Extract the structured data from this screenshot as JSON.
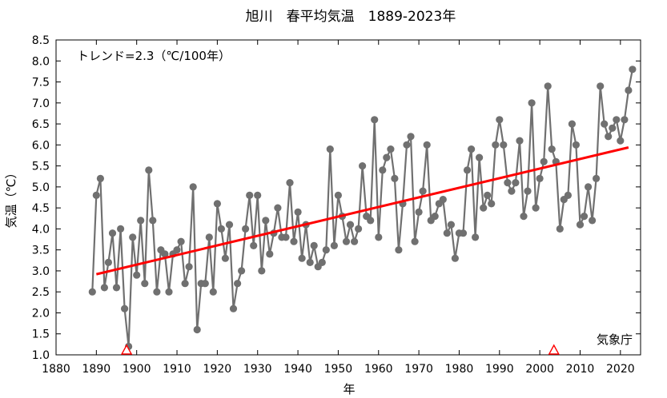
{
  "chart_data": {
    "type": "line",
    "title": "旭川　春平均気温　1889-2023年",
    "xlabel": "年",
    "ylabel": "気温（℃）",
    "annotation": "トレンド=2.3（℃/100年）",
    "source": "気象庁",
    "xlim": [
      1880,
      2025
    ],
    "ylim": [
      1.0,
      8.5
    ],
    "xticks": [
      1880,
      1890,
      1900,
      1910,
      1920,
      1930,
      1940,
      1950,
      1960,
      1970,
      1980,
      1990,
      2000,
      2010,
      2020
    ],
    "yticks": [
      "1.0",
      "1.5",
      "2.0",
      "2.5",
      "3.0",
      "3.5",
      "4.0",
      "4.5",
      "5.0",
      "5.5",
      "6.0",
      "6.5",
      "7.0",
      "7.5",
      "8.0",
      "8.5"
    ],
    "grid": false,
    "series": [
      {
        "color": "#707070",
        "x": [
          1889,
          1890,
          1891,
          1892,
          1893,
          1894,
          1895,
          1896,
          1897,
          1898,
          1899,
          1900,
          1901,
          1902,
          1903,
          1904,
          1905,
          1906,
          1907,
          1908,
          1909,
          1910,
          1911,
          1912,
          1913,
          1914,
          1915,
          1916,
          1917,
          1918,
          1919,
          1920,
          1921,
          1922,
          1923,
          1924,
          1925,
          1926,
          1927,
          1928,
          1929,
          1930,
          1931,
          1932,
          1933,
          1934,
          1935,
          1936,
          1937,
          1938,
          1939,
          1940,
          1941,
          1942,
          1943,
          1944,
          1945,
          1946,
          1947,
          1948,
          1949,
          1950,
          1951,
          1952,
          1953,
          1954,
          1955,
          1956,
          1957,
          1958,
          1959,
          1960,
          1961,
          1962,
          1963,
          1964,
          1965,
          1966,
          1967,
          1968,
          1969,
          1970,
          1971,
          1972,
          1973,
          1974,
          1975,
          1976,
          1977,
          1978,
          1979,
          1980,
          1981,
          1982,
          1983,
          1984,
          1985,
          1986,
          1987,
          1988,
          1989,
          1990,
          1991,
          1992,
          1993,
          1994,
          1995,
          1996,
          1997,
          1998,
          1999,
          2000,
          2001,
          2002,
          2003,
          2004,
          2005,
          2006,
          2007,
          2008,
          2009,
          2010,
          2011,
          2012,
          2013,
          2014,
          2015,
          2016,
          2017,
          2018,
          2019,
          2020,
          2021,
          2022,
          2023
        ],
        "y": [
          2.5,
          4.8,
          5.2,
          2.6,
          3.2,
          3.9,
          2.6,
          4.0,
          2.1,
          1.2,
          3.8,
          2.9,
          4.2,
          2.7,
          5.4,
          4.2,
          2.5,
          3.5,
          3.4,
          2.5,
          3.4,
          3.5,
          3.7,
          2.7,
          3.1,
          5.0,
          1.6,
          2.7,
          2.7,
          3.8,
          2.5,
          4.6,
          4.0,
          3.3,
          4.1,
          2.1,
          2.7,
          3.0,
          4.0,
          4.8,
          3.6,
          4.8,
          3.0,
          4.2,
          3.4,
          3.9,
          4.5,
          3.8,
          3.8,
          5.1,
          3.7,
          4.4,
          3.3,
          4.1,
          3.2,
          3.6,
          3.1,
          3.2,
          3.5,
          5.9,
          3.6,
          4.8,
          4.3,
          3.7,
          4.1,
          3.7,
          4.0,
          5.5,
          4.3,
          4.2,
          6.6,
          3.8,
          5.4,
          5.7,
          5.9,
          5.2,
          3.5,
          4.6,
          6.0,
          6.2,
          3.7,
          4.4,
          4.9,
          6.0,
          4.2,
          4.3,
          4.6,
          4.7,
          3.9,
          4.1,
          3.3,
          3.9,
          3.9,
          5.4,
          5.9,
          3.8,
          5.7,
          4.5,
          4.8,
          4.6,
          6.0,
          6.6,
          6.0,
          5.1,
          4.9,
          5.1,
          6.1,
          4.3,
          4.9,
          7.0,
          4.5,
          5.2,
          5.6,
          7.4,
          5.9,
          5.6,
          4.0,
          4.7,
          4.8,
          6.5,
          6.0,
          4.1,
          4.3,
          5.0,
          4.2,
          5.2,
          7.4,
          6.5,
          6.2,
          6.4,
          6.6,
          6.1,
          6.6,
          7.3,
          7.8
        ]
      }
    ],
    "trend": {
      "color": "#ff0000",
      "x": [
        1890,
        2022
      ],
      "y": [
        2.92,
        5.94
      ]
    },
    "markers": {
      "color": "#ff0000",
      "shape": "triangle",
      "x": [
        1897.5,
        2003.5
      ]
    }
  }
}
